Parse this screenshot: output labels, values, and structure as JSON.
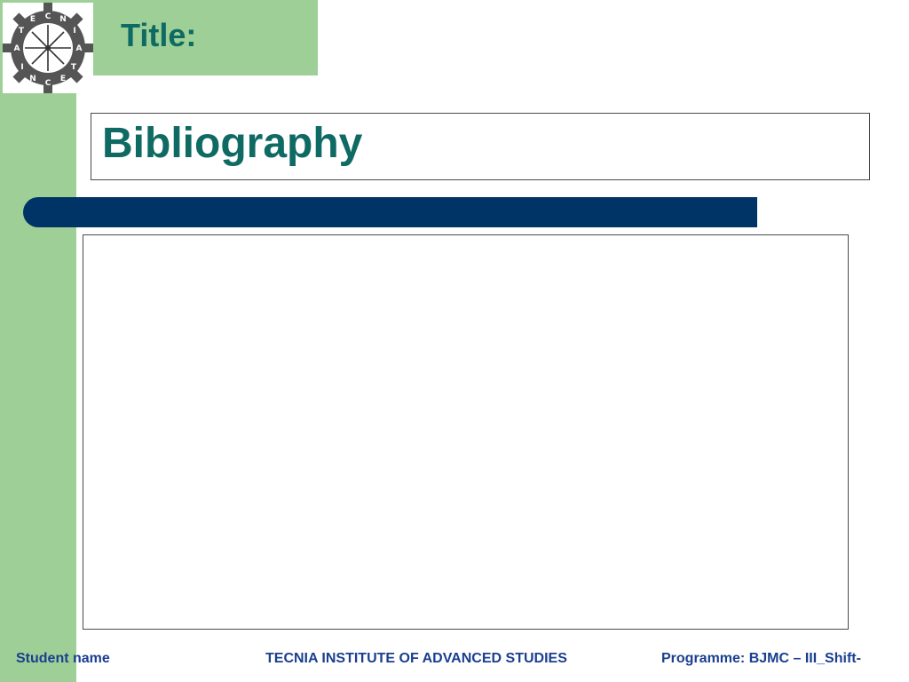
{
  "logo": {
    "name": "tecnia-logo-icon",
    "letters": [
      "T",
      "E",
      "C",
      "N",
      "I",
      "A",
      "T",
      "E",
      "C",
      "N",
      "I",
      "A"
    ]
  },
  "header": {
    "title_label": "Title:"
  },
  "slide": {
    "heading": "Bibliography",
    "content": ""
  },
  "footer": {
    "student": "Student name",
    "institute": "TECNIA INSTITUTE OF ADVANCED STUDIES",
    "programme": "Programme: BJMC – III_Shift-"
  },
  "colors": {
    "green_band": "#9dcf97",
    "heading_teal": "#0e6a63",
    "navy_bar": "#003366",
    "footer_blue": "#1a3f8f"
  }
}
